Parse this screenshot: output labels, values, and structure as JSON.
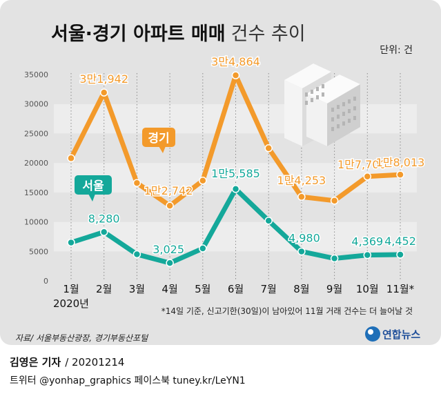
{
  "title": "서울·경기 아파트 매매",
  "title_light": "건수 추이",
  "unit_label": "단위: 건",
  "footnote": "*14일 기준, 신고기한(30일)이 남아있어 11월 거래 건수는 더 늘어날 것",
  "source": "자료/ 서울부동산광장, 경기부동산포털",
  "logo": "연합뉴스",
  "byline": {
    "name": "김영은 기자",
    "date": "/ 20201214"
  },
  "social": "트위터 @yonhap_graphics  페이스북 tuney.kr/LeYN1",
  "colors": {
    "gyeonggi": "#f39a2b",
    "seoul": "#14a89a",
    "band": "#ededed",
    "panel": "#e3e3e3"
  },
  "chart_data": {
    "type": "line",
    "categories": [
      "1월",
      "2월",
      "3월",
      "4월",
      "5월",
      "6월",
      "7월",
      "8월",
      "9월",
      "10월",
      "11월*"
    ],
    "year_label": "2020년",
    "ylim": [
      0,
      35000
    ],
    "yticks": [
      0,
      5000,
      10000,
      15000,
      20000,
      25000,
      30000,
      35000
    ],
    "series": [
      {
        "name": "경기",
        "values": [
          20800,
          31942,
          16600,
          12742,
          17000,
          34864,
          22500,
          14253,
          13600,
          17700,
          18013
        ],
        "labels": [
          "",
          "3만1,942",
          "",
          "1만2,742",
          "",
          "3만4,864",
          "",
          "1만4,253",
          "",
          "1만7,700",
          "1만8,013"
        ]
      },
      {
        "name": "서울",
        "values": [
          6500,
          8280,
          4500,
          3025,
          5500,
          15585,
          10200,
          4980,
          3800,
          4369,
          4452
        ],
        "labels": [
          "",
          "8,280",
          "",
          "3,025",
          "",
          "1만5,585",
          "",
          "4,980",
          "",
          "4,369",
          "4,452"
        ]
      }
    ]
  }
}
